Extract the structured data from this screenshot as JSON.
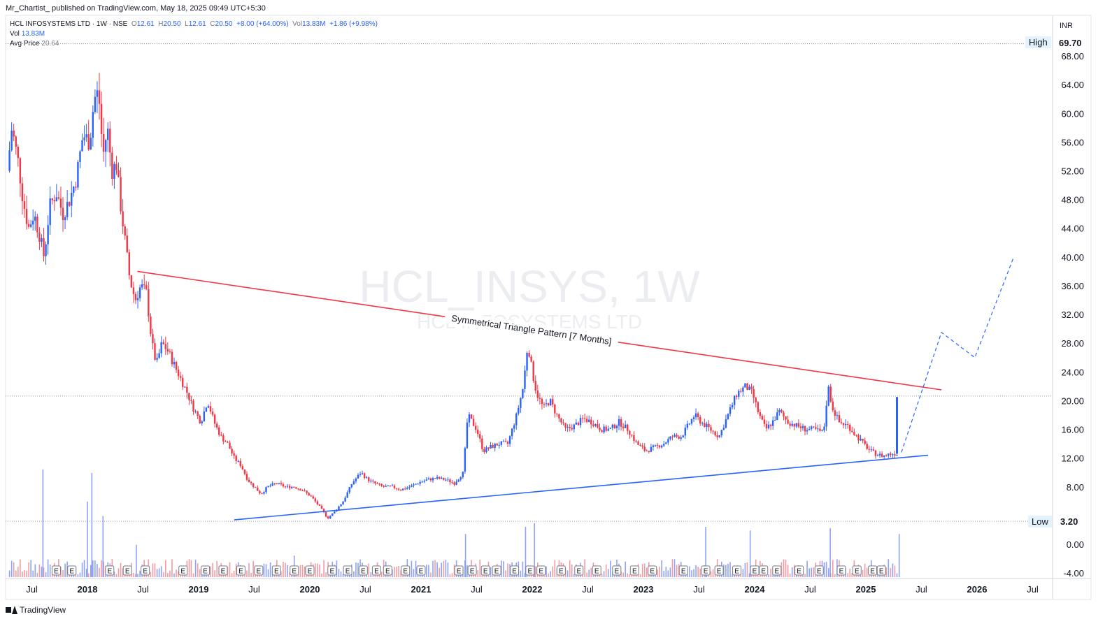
{
  "header": {
    "publish_line": "Mr_Chartist_ published on TradingView.com, May 18, 2025 09:49 UTC+5:30"
  },
  "legend": {
    "symbol": "HCL INFOSYSTEMS LTD · 1W · NSE",
    "o_label": "O",
    "o_value": "12.61",
    "h_label": "H",
    "h_value": "20.50",
    "l_label": "L",
    "l_value": "12.61",
    "c_label": "C",
    "c_value": "20.50",
    "change": "+8.00 (+64.00%)",
    "vol_inline_label": "Vol",
    "vol_inline_value": "13.83M",
    "vol_inline_change": "+1.86 (+9.98%)",
    "vol_label": "Vol",
    "vol_value": "13.83M",
    "avg_label": "Avg Price",
    "avg_value": "20.64"
  },
  "watermark": {
    "main": "HCL_INSYS, 1W",
    "sub": "HCL INFOSYSTEMS LTD"
  },
  "annotation": "Symmetrical Triangle Pattern [7 Months]",
  "currency": "INR",
  "high_badge": {
    "label": "High",
    "value": "69.70"
  },
  "low_badge": {
    "label": "Low",
    "value": "3.20"
  },
  "footer": {
    "brand": "TradingView"
  },
  "earnings_marker": "E",
  "colors": {
    "up": "#2962ff",
    "down": "#f23645",
    "resistance": "#f23645",
    "support": "#2962ff",
    "projection": "#2962ff",
    "watermark": "#ecedf1"
  },
  "chart_data": {
    "type": "candlestick",
    "timeframe": "1W",
    "y_ticks": [
      "68.00",
      "64.00",
      "60.00",
      "56.00",
      "52.00",
      "48.00",
      "44.00",
      "40.00",
      "36.00",
      "32.00",
      "28.00",
      "24.00",
      "20.00",
      "16.00",
      "12.00",
      "8.00",
      "0.00",
      "-4.00"
    ],
    "y_range": [
      -4,
      72
    ],
    "x_labels": [
      {
        "label": "Jul",
        "date": 2017.5
      },
      {
        "label": "2018",
        "date": 2018.0
      },
      {
        "label": "Jul",
        "date": 2018.5
      },
      {
        "label": "2019",
        "date": 2019.0
      },
      {
        "label": "Jul",
        "date": 2019.5
      },
      {
        "label": "2020",
        "date": 2020.0
      },
      {
        "label": "Jul",
        "date": 2020.5
      },
      {
        "label": "2021",
        "date": 2021.0
      },
      {
        "label": "Jul",
        "date": 2021.5
      },
      {
        "label": "2022",
        "date": 2022.0
      },
      {
        "label": "Jul",
        "date": 2022.5
      },
      {
        "label": "2023",
        "date": 2023.0
      },
      {
        "label": "Jul",
        "date": 2023.5
      },
      {
        "label": "2024",
        "date": 2024.0
      },
      {
        "label": "Jul",
        "date": 2024.5
      },
      {
        "label": "2025",
        "date": 2025.0
      },
      {
        "label": "Jul",
        "date": 2025.5
      },
      {
        "label": "2026",
        "date": 2026.0
      },
      {
        "label": "Jul",
        "date": 2026.5
      }
    ],
    "bold_year_labels": [
      "2018",
      "2019",
      "2020",
      "2021",
      "2022",
      "2023",
      "2024",
      "2025",
      "2026"
    ],
    "price_path": [
      [
        2017.28,
        52
      ],
      [
        2017.32,
        58
      ],
      [
        2017.38,
        53
      ],
      [
        2017.42,
        48
      ],
      [
        2017.47,
        44
      ],
      [
        2017.52,
        46
      ],
      [
        2017.57,
        43
      ],
      [
        2017.61,
        40
      ],
      [
        2017.66,
        47
      ],
      [
        2017.72,
        49
      ],
      [
        2017.78,
        46
      ],
      [
        2017.84,
        48
      ],
      [
        2017.9,
        51
      ],
      [
        2017.96,
        57
      ],
      [
        2018.02,
        56
      ],
      [
        2018.06,
        62
      ],
      [
        2018.1,
        63
      ],
      [
        2018.14,
        54
      ],
      [
        2018.18,
        58
      ],
      [
        2018.22,
        52
      ],
      [
        2018.26,
        53
      ],
      [
        2018.3,
        47
      ],
      [
        2018.34,
        42
      ],
      [
        2018.38,
        37
      ],
      [
        2018.43,
        34
      ],
      [
        2018.48,
        36
      ],
      [
        2018.53,
        35
      ],
      [
        2018.58,
        28
      ],
      [
        2018.62,
        25
      ],
      [
        2018.67,
        28
      ],
      [
        2018.72,
        27
      ],
      [
        2018.78,
        25
      ],
      [
        2018.84,
        23
      ],
      [
        2018.9,
        21
      ],
      [
        2018.95,
        19
      ],
      [
        2019.02,
        17
      ],
      [
        2019.08,
        20
      ],
      [
        2019.14,
        17
      ],
      [
        2019.2,
        15
      ],
      [
        2019.26,
        14
      ],
      [
        2019.32,
        12
      ],
      [
        2019.38,
        11
      ],
      [
        2019.44,
        9
      ],
      [
        2019.5,
        8
      ],
      [
        2019.56,
        7
      ],
      [
        2019.62,
        8
      ],
      [
        2019.7,
        8.5
      ],
      [
        2019.78,
        8
      ],
      [
        2019.86,
        8
      ],
      [
        2019.94,
        7.5
      ],
      [
        2020.02,
        6.5
      ],
      [
        2020.1,
        5
      ],
      [
        2020.16,
        3.6
      ],
      [
        2020.22,
        4.5
      ],
      [
        2020.3,
        6
      ],
      [
        2020.38,
        8.5
      ],
      [
        2020.46,
        10
      ],
      [
        2020.52,
        9
      ],
      [
        2020.58,
        8.5
      ],
      [
        2020.66,
        8
      ],
      [
        2020.74,
        8
      ],
      [
        2020.82,
        7.6
      ],
      [
        2020.9,
        8
      ],
      [
        2020.98,
        8.6
      ],
      [
        2021.06,
        9
      ],
      [
        2021.14,
        9.2
      ],
      [
        2021.22,
        9
      ],
      [
        2021.3,
        8.5
      ],
      [
        2021.38,
        10
      ],
      [
        2021.42,
        18
      ],
      [
        2021.46,
        17
      ],
      [
        2021.5,
        16
      ],
      [
        2021.56,
        13
      ],
      [
        2021.62,
        13.5
      ],
      [
        2021.7,
        14
      ],
      [
        2021.78,
        14
      ],
      [
        2021.86,
        18
      ],
      [
        2021.92,
        22
      ],
      [
        2021.96,
        28
      ],
      [
        2022.0,
        24
      ],
      [
        2022.04,
        21
      ],
      [
        2022.1,
        19
      ],
      [
        2022.16,
        20
      ],
      [
        2022.22,
        18
      ],
      [
        2022.3,
        16
      ],
      [
        2022.38,
        16.5
      ],
      [
        2022.46,
        17.5
      ],
      [
        2022.54,
        17
      ],
      [
        2022.62,
        16
      ],
      [
        2022.7,
        16
      ],
      [
        2022.78,
        17
      ],
      [
        2022.86,
        16
      ],
      [
        2022.94,
        14
      ],
      [
        2023.02,
        13
      ],
      [
        2023.1,
        13.5
      ],
      [
        2023.18,
        14
      ],
      [
        2023.26,
        15
      ],
      [
        2023.34,
        15
      ],
      [
        2023.42,
        17
      ],
      [
        2023.46,
        18
      ],
      [
        2023.52,
        17
      ],
      [
        2023.6,
        16
      ],
      [
        2023.68,
        15
      ],
      [
        2023.76,
        18
      ],
      [
        2023.84,
        21
      ],
      [
        2023.92,
        22
      ],
      [
        2023.98,
        21
      ],
      [
        2024.04,
        18
      ],
      [
        2024.1,
        16
      ],
      [
        2024.16,
        17
      ],
      [
        2024.22,
        18.5
      ],
      [
        2024.3,
        17
      ],
      [
        2024.38,
        16.5
      ],
      [
        2024.46,
        16
      ],
      [
        2024.54,
        16
      ],
      [
        2024.62,
        15.5
      ],
      [
        2024.66,
        22
      ],
      [
        2024.7,
        19
      ],
      [
        2024.76,
        17
      ],
      [
        2024.84,
        16.5
      ],
      [
        2024.92,
        15
      ],
      [
        2024.98,
        14
      ],
      [
        2025.04,
        13
      ],
      [
        2025.1,
        12.5
      ],
      [
        2025.16,
        12.3
      ],
      [
        2025.22,
        12.6
      ],
      [
        2025.28,
        12.6
      ],
      [
        2025.3,
        20.5
      ]
    ],
    "last_candle": {
      "open": 12.61,
      "high": 20.5,
      "low": 12.61,
      "close": 20.5
    },
    "high_level": 69.7,
    "low_level": 3.2,
    "current_price_line": 20.64,
    "resistance_line": [
      [
        2018.45,
        38.0
      ],
      [
        2025.68,
        21.5
      ]
    ],
    "support_line": [
      [
        2019.32,
        3.4
      ],
      [
        2025.56,
        12.4
      ]
    ],
    "projection_path": [
      [
        2025.32,
        12.8
      ],
      [
        2025.68,
        29.5
      ],
      [
        2025.98,
        26.0
      ],
      [
        2026.33,
        40.0
      ]
    ],
    "volume_peaks": [
      [
        2017.6,
        15.0
      ],
      [
        2018.0,
        10.5
      ],
      [
        2018.04,
        14.5
      ],
      [
        2018.14,
        8.5
      ],
      [
        2018.44,
        4.5
      ],
      [
        2019.86,
        3.0
      ],
      [
        2021.4,
        6.0
      ],
      [
        2021.94,
        7.0
      ],
      [
        2022.02,
        7.5
      ],
      [
        2023.56,
        7.0
      ],
      [
        2023.96,
        6.5
      ],
      [
        2024.68,
        6.8
      ],
      [
        2025.3,
        6.0
      ]
    ],
    "earnings_dates": [
      2017.72,
      2017.86,
      2018.2,
      2018.36,
      2018.52,
      2018.86,
      2019.06,
      2019.22,
      2019.38,
      2019.54,
      2019.7,
      2019.86,
      2020.0,
      2020.2,
      2020.34,
      2020.48,
      2020.6,
      2020.7,
      2020.86,
      2021.0,
      2021.34,
      2021.46,
      2021.58,
      2021.68,
      2021.84,
      2021.98,
      2022.08,
      2022.26,
      2022.42,
      2022.58,
      2022.76,
      2022.92,
      2023.08,
      2023.36,
      2023.56,
      2023.68,
      2023.84,
      2024.0,
      2024.08,
      2024.2,
      2024.4,
      2024.58,
      2024.78,
      2024.92,
      2025.06,
      2025.14
    ]
  }
}
